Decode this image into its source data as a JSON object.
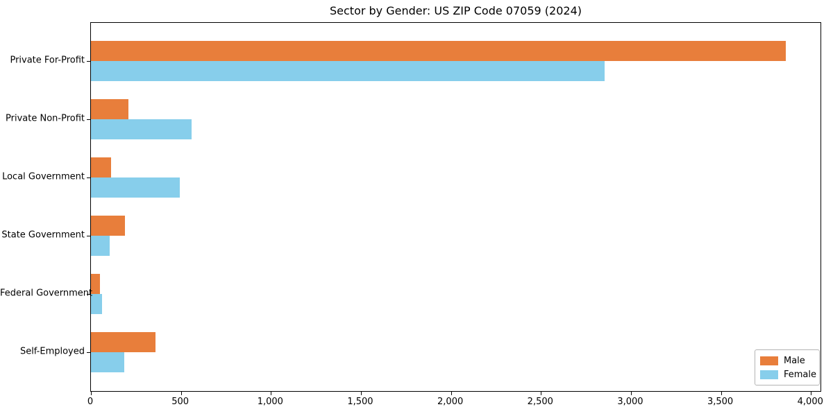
{
  "chart_data": {
    "type": "bar",
    "orientation": "horizontal",
    "title": "Sector by Gender: US ZIP Code 07059 (2024)",
    "categories": [
      "Private For-Profit",
      "Private Non-Profit",
      "Local Government",
      "State Government",
      "Federal Government",
      "Self-Employed"
    ],
    "series": [
      {
        "name": "Male",
        "color": "#E87E3B",
        "values": [
          3860,
          210,
          110,
          190,
          50,
          360
        ]
      },
      {
        "name": "Female",
        "color": "#87CEEB",
        "values": [
          2855,
          560,
          495,
          105,
          62,
          185
        ]
      }
    ],
    "xlim": [
      0,
      4053
    ],
    "xticks": [
      0,
      500,
      1000,
      1500,
      2000,
      2500,
      3000,
      3500,
      4000
    ],
    "xlabel": "",
    "ylabel": "",
    "grid": false,
    "legend_position": "lower right"
  },
  "colors": {
    "background": "#ffffff",
    "axis": "#000000",
    "text": "#000000",
    "legend_border": "#b3b3b3"
  }
}
